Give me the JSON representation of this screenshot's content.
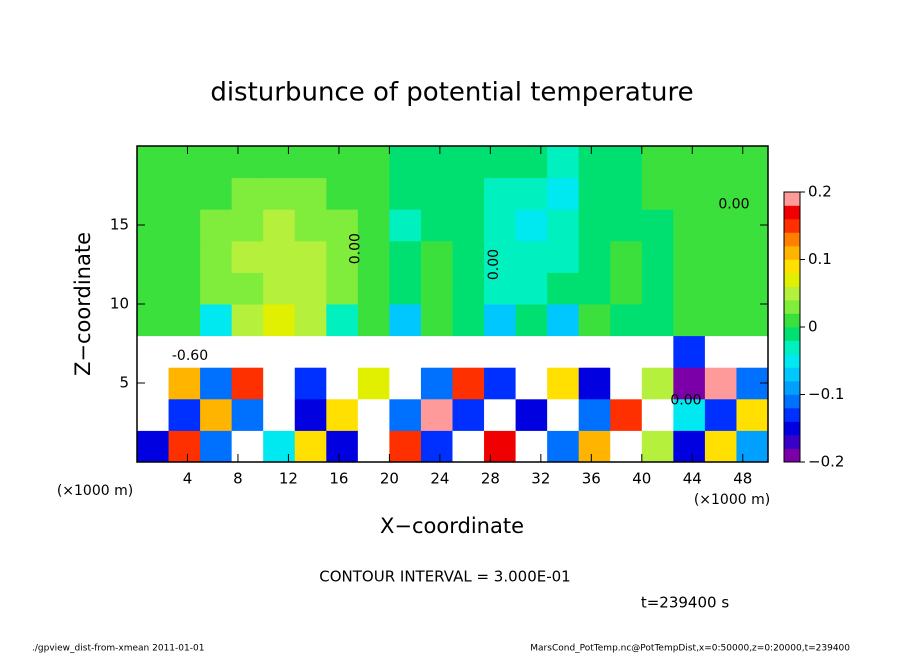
{
  "chart_data": {
    "type": "heatmap",
    "title": "disturbunce of potential temperature",
    "xlabel": "X−coordinate",
    "ylabel": "Z−coordinate",
    "xunit": "(×1000 m)",
    "yunit": "(×1000 m)",
    "xlim": [
      0,
      50
    ],
    "ylim": [
      0,
      20
    ],
    "xticks": [
      4,
      8,
      12,
      16,
      20,
      24,
      28,
      32,
      36,
      40,
      44,
      48
    ],
    "yticks": [
      5,
      10,
      15
    ],
    "x": [
      1.25,
      3.75,
      6.25,
      8.75,
      11.25,
      13.75,
      16.25,
      18.75,
      21.25,
      23.75,
      26.25,
      28.75,
      31.25,
      33.75,
      36.25,
      38.75,
      41.25,
      43.75,
      46.25,
      48.75
    ],
    "y": [
      1,
      3,
      5,
      7,
      9,
      11,
      13,
      15,
      17,
      19
    ],
    "z": [
      [
        -0.15,
        0.15,
        -0.1,
        0.3,
        -0.05,
        0.1,
        -0.15,
        0.3,
        0.15,
        -0.12,
        0.3,
        0.18,
        0.3,
        -0.1,
        0.12,
        0.3,
        0.05,
        -0.15,
        0.1,
        -0.08
      ],
      [
        0.3,
        -0.12,
        0.12,
        -0.1,
        0.3,
        -0.14,
        0.1,
        0.3,
        -0.1,
        0.2,
        -0.12,
        0.3,
        -0.15,
        0.3,
        -0.1,
        0.15,
        0.3,
        -0.05,
        -0.12,
        0.1
      ],
      [
        0.3,
        0.12,
        -0.1,
        0.15,
        0.3,
        -0.12,
        0.3,
        0.08,
        0.3,
        -0.1,
        0.15,
        -0.12,
        0.3,
        0.1,
        -0.15,
        0.3,
        0.05,
        -0.18,
        0.2,
        -0.1
      ],
      [
        0.3,
        0.3,
        0.3,
        0.3,
        0.3,
        0.3,
        0.3,
        0.3,
        0.3,
        0.3,
        0.3,
        0.3,
        0.3,
        0.3,
        0.3,
        0.3,
        0.3,
        -0.12,
        0.3,
        0.3
      ],
      [
        0.02,
        0.02,
        -0.04,
        0.06,
        0.08,
        0.06,
        -0.02,
        0.02,
        -0.06,
        0.02,
        0.0,
        -0.06,
        0.0,
        -0.06,
        0.02,
        0.0,
        0.0,
        0.01,
        0.01,
        0.01
      ],
      [
        0.01,
        0.02,
        0.04,
        0.04,
        0.06,
        0.06,
        0.03,
        0.02,
        -0.01,
        0.01,
        0.0,
        -0.02,
        -0.02,
        -0.01,
        0.0,
        0.01,
        0.0,
        0.01,
        0.01,
        0.01
      ],
      [
        0.01,
        0.02,
        0.04,
        0.05,
        0.06,
        0.05,
        0.03,
        0.02,
        -0.01,
        0.01,
        0.0,
        -0.03,
        -0.03,
        -0.02,
        0.0,
        0.01,
        0.0,
        0.01,
        0.01,
        0.01
      ],
      [
        0.01,
        0.02,
        0.03,
        0.04,
        0.05,
        0.04,
        0.03,
        0.02,
        -0.02,
        0.0,
        0.0,
        -0.03,
        -0.04,
        -0.03,
        -0.01,
        0.0,
        0.0,
        0.01,
        0.01,
        0.01
      ],
      [
        0.01,
        0.01,
        0.02,
        0.03,
        0.03,
        0.03,
        0.02,
        0.01,
        -0.01,
        0.0,
        0.0,
        -0.02,
        -0.03,
        -0.04,
        -0.01,
        0.0,
        0.01,
        0.01,
        0.01,
        0.01
      ],
      [
        0.01,
        0.01,
        0.01,
        0.02,
        0.02,
        0.02,
        0.01,
        0.01,
        0.0,
        0.0,
        0.0,
        -0.01,
        -0.01,
        -0.02,
        0.0,
        0.0,
        0.01,
        0.01,
        0.01,
        0.01
      ]
    ],
    "colorbar": {
      "levels": [
        -0.2,
        -0.18,
        -0.16,
        -0.14,
        -0.12,
        -0.1,
        -0.08,
        -0.06,
        -0.04,
        -0.02,
        0,
        0.02,
        0.04,
        0.06,
        0.08,
        0.1,
        0.12,
        0.14,
        0.16,
        0.18,
        0.2
      ],
      "colors": [
        "#7b00a8",
        "#3a00c8",
        "#0000e0",
        "#0030ff",
        "#0070ff",
        "#00a0ff",
        "#00c8ff",
        "#00e8f0",
        "#00f0c0",
        "#00e070",
        "#3ce03c",
        "#80ec3c",
        "#b4f03c",
        "#e0f000",
        "#ffe000",
        "#ffb400",
        "#ff8000",
        "#ff3000",
        "#f00000",
        "#ff9a9a"
      ],
      "ticks": [
        {
          "value": 0.2,
          "label": "0.2"
        },
        {
          "value": 0.1,
          "label": "0.1"
        },
        0,
        {
          "value": -0.1,
          "label": "−0.1"
        },
        {
          "value": -0.2,
          "label": "−0.2"
        }
      ]
    },
    "contour_labels": [
      {
        "text": "0.00",
        "x": 17.3,
        "y": 13.5
      },
      {
        "text": "0.00",
        "x": 28.3,
        "y": 12.5
      },
      {
        "text": "0.00",
        "x": 47.3,
        "y": 16.3
      },
      {
        "text": "-0.60",
        "x": 4.2,
        "y": 6.7
      },
      {
        "text": "0.00",
        "x": 43.5,
        "y": 3.9
      }
    ],
    "contour_interval": "CONTOUR INTERVAL = 3.000E-01",
    "time_label": "t=239400 s",
    "footer_left": "./gpview_dist-from-xmean  2011-01-01",
    "footer_right": "MarsCond_PotTemp.nc@PotTempDist,x=0:50000,z=0:20000,t=239400"
  }
}
